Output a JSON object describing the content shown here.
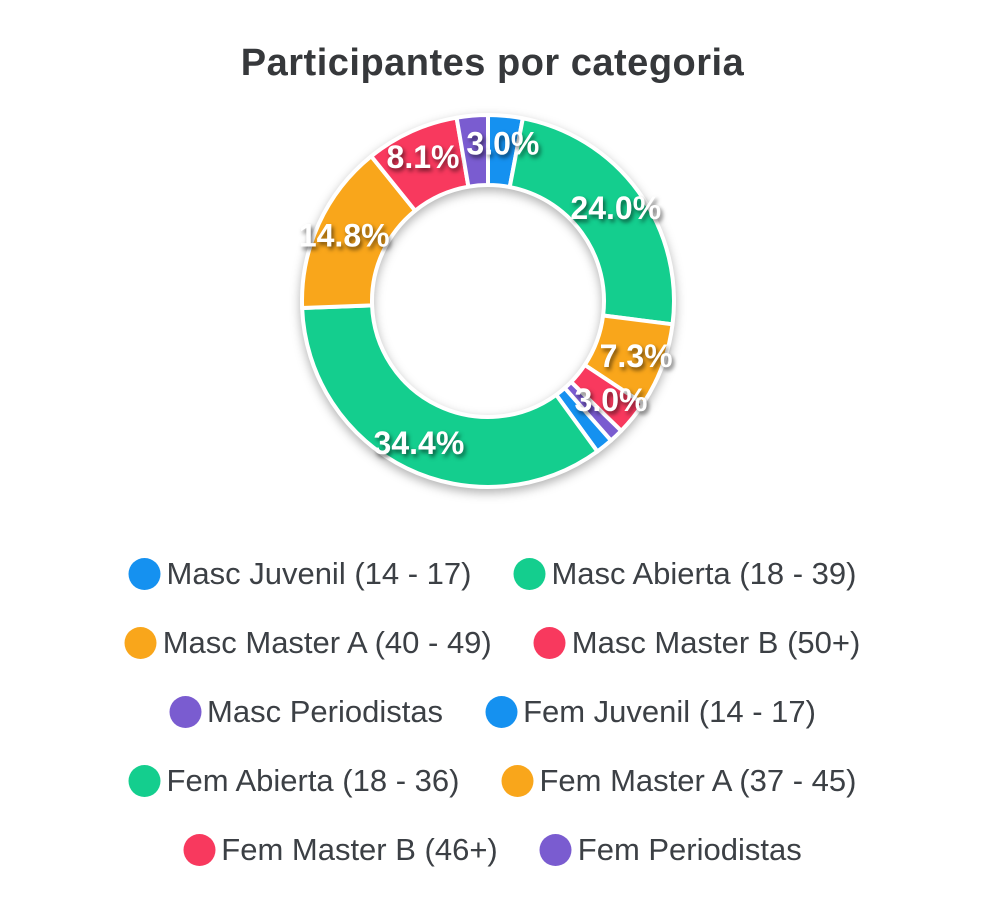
{
  "header": {
    "title": "Participantes por categoria"
  },
  "palette": {
    "blue": "#1591F0",
    "green": "#14CE8E",
    "orange": "#F9A61B",
    "red": "#F8395E",
    "purple": "#7A5CD0"
  },
  "chart_data": {
    "type": "pie",
    "subtype": "donut",
    "title": "Participantes por categoria",
    "direction": "clockwise",
    "start_angle_deg": 0,
    "legend_position": "bottom",
    "categories": [
      "Masc Juvenil (14 - 17)",
      "Masc Abierta (18 - 39)",
      "Masc Master A (40 - 49)",
      "Masc Master B (50+)",
      "Masc Periodistas",
      "Fem Juvenil (14 - 17)",
      "Fem Abierta (18 - 36)",
      "Fem Master A (37 - 45)",
      "Fem Master B (46+)",
      "Fem Periodistas"
    ],
    "series": [
      {
        "label": "Masc Juvenil (14 - 17)",
        "value": 3.0,
        "color": "#1591F0",
        "percent_label": "3.0%"
      },
      {
        "label": "Masc Abierta (18 - 39)",
        "value": 24.0,
        "color": "#14CE8E",
        "percent_label": "24.0%"
      },
      {
        "label": "Masc Master A (40 - 49)",
        "value": 7.3,
        "color": "#F9A61B",
        "percent_label": "7.3%"
      },
      {
        "label": "Masc Master B (50+)",
        "value": 3.0,
        "color": "#F8395E",
        "percent_label": "3.0%"
      },
      {
        "label": "Masc Periodistas",
        "value": 1.2,
        "color": "#7A5CD0",
        "percent_label": ""
      },
      {
        "label": "Fem Juvenil (14 - 17)",
        "value": 1.5,
        "color": "#1591F0",
        "percent_label": ""
      },
      {
        "label": "Fem Abierta (18 - 36)",
        "value": 34.4,
        "color": "#14CE8E",
        "percent_label": "34.4%"
      },
      {
        "label": "Fem Master A (37 - 45)",
        "value": 14.8,
        "color": "#F9A61B",
        "percent_label": "14.8%"
      },
      {
        "label": "Fem Master B (46+)",
        "value": 8.1,
        "color": "#F8395E",
        "percent_label": "8.1%"
      },
      {
        "label": "Fem Periodistas",
        "value": 2.7,
        "color": "#7A5CD0",
        "percent_label": ""
      }
    ]
  }
}
